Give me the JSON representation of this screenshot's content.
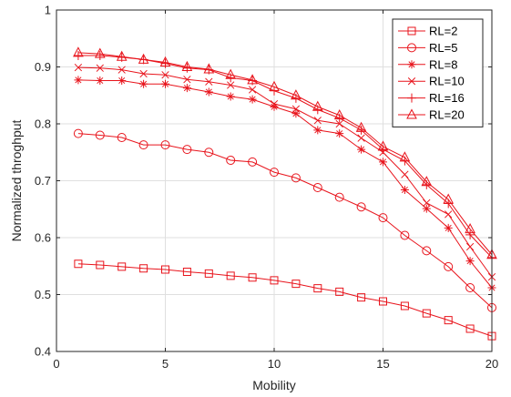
{
  "chart_data": {
    "type": "line",
    "xlabel": "Mobility",
    "ylabel": "Normalized throghput",
    "xlim": [
      0,
      20
    ],
    "ylim": [
      0.4,
      1
    ],
    "xticks": [
      0,
      5,
      10,
      15,
      20
    ],
    "yticks": [
      0.4,
      0.5,
      0.6,
      0.7,
      0.8,
      0.9,
      1
    ],
    "xtick_labels": [
      "0",
      "5",
      "10",
      "15",
      "20"
    ],
    "ytick_labels": [
      "0.4",
      "0.5",
      "0.6",
      "0.7",
      "0.8",
      "0.9",
      "1"
    ],
    "grid": true,
    "legend_position": "top-right",
    "line_color": "#e8141c",
    "x": [
      1,
      2,
      3,
      4,
      5,
      6,
      7,
      8,
      9,
      10,
      11,
      12,
      13,
      14,
      15,
      16,
      17,
      18,
      19,
      20
    ],
    "series": [
      {
        "name": "RL=2",
        "marker": "square",
        "values": [
          0.554,
          0.552,
          0.549,
          0.546,
          0.544,
          0.54,
          0.537,
          0.533,
          0.53,
          0.525,
          0.519,
          0.511,
          0.505,
          0.495,
          0.488,
          0.48,
          0.467,
          0.455,
          0.44,
          0.427
        ]
      },
      {
        "name": "RL=5",
        "marker": "circle",
        "values": [
          0.783,
          0.78,
          0.776,
          0.763,
          0.763,
          0.755,
          0.75,
          0.736,
          0.733,
          0.715,
          0.705,
          0.688,
          0.671,
          0.654,
          0.635,
          0.604,
          0.577,
          0.549,
          0.512,
          0.477
        ]
      },
      {
        "name": "RL=8",
        "marker": "asterisk",
        "values": [
          0.877,
          0.876,
          0.876,
          0.87,
          0.87,
          0.863,
          0.856,
          0.848,
          0.843,
          0.83,
          0.818,
          0.789,
          0.783,
          0.755,
          0.733,
          0.684,
          0.651,
          0.617,
          0.559,
          0.512
        ]
      },
      {
        "name": "RL=10",
        "marker": "x",
        "values": [
          0.899,
          0.898,
          0.895,
          0.888,
          0.886,
          0.878,
          0.874,
          0.868,
          0.86,
          0.835,
          0.826,
          0.806,
          0.8,
          0.775,
          0.75,
          0.711,
          0.661,
          0.641,
          0.584,
          0.531
        ]
      },
      {
        "name": "RL=16",
        "marker": "plus",
        "values": [
          0.92,
          0.92,
          0.917,
          0.913,
          0.906,
          0.898,
          0.895,
          0.881,
          0.876,
          0.858,
          0.845,
          0.825,
          0.81,
          0.789,
          0.755,
          0.735,
          0.693,
          0.66,
          0.605,
          0.565
        ]
      },
      {
        "name": "RL=20",
        "marker": "triangle",
        "values": [
          0.925,
          0.923,
          0.918,
          0.913,
          0.908,
          0.9,
          0.896,
          0.886,
          0.877,
          0.865,
          0.85,
          0.83,
          0.815,
          0.793,
          0.76,
          0.741,
          0.698,
          0.667,
          0.615,
          0.57
        ]
      }
    ]
  }
}
